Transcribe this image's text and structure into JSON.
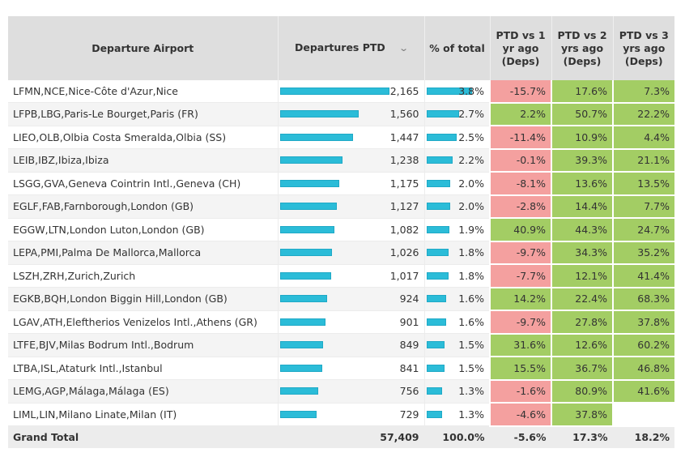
{
  "columns": {
    "airport": "Departure Airport",
    "departures": "Departures PTD",
    "departures_sort_icon": "chevron-down-icon",
    "pct_total": "% of total",
    "vs1": "PTD vs 1 yr ago (Deps)",
    "vs2": "PTD vs 2 yrs ago (Deps)",
    "vs3": "PTD vs 3 yrs ago (Deps)"
  },
  "colors": {
    "bar": "#2bbcd8",
    "negative": "#f4a09f",
    "positive": "#a3cd64",
    "header_bg": "#dedede"
  },
  "max_departures": 2165,
  "max_pct": 3.8,
  "rows": [
    {
      "airport": "LFMN,NCE,Nice-Côte d'Azur,Nice",
      "departures": "2,165",
      "dep_value": 2165,
      "pct": "3.8%",
      "pct_value": 3.8,
      "vs1": "-15.7%",
      "vs2": "17.6%",
      "vs3": "7.3%"
    },
    {
      "airport": "LFPB,LBG,Paris-Le Bourget,Paris (FR)",
      "departures": "1,560",
      "dep_value": 1560,
      "pct": "2.7%",
      "pct_value": 2.7,
      "vs1": "2.2%",
      "vs2": "50.7%",
      "vs3": "22.2%"
    },
    {
      "airport": "LIEO,OLB,Olbia Costa Smeralda,Olbia (SS)",
      "departures": "1,447",
      "dep_value": 1447,
      "pct": "2.5%",
      "pct_value": 2.5,
      "vs1": "-11.4%",
      "vs2": "10.9%",
      "vs3": "4.4%"
    },
    {
      "airport": "LEIB,IBZ,Ibiza,Ibiza",
      "departures": "1,238",
      "dep_value": 1238,
      "pct": "2.2%",
      "pct_value": 2.2,
      "vs1": "-0.1%",
      "vs2": "39.3%",
      "vs3": "21.1%"
    },
    {
      "airport": "LSGG,GVA,Geneva Cointrin Intl.,Geneva (CH)",
      "departures": "1,175",
      "dep_value": 1175,
      "pct": "2.0%",
      "pct_value": 2.0,
      "vs1": "-8.1%",
      "vs2": "13.6%",
      "vs3": "13.5%"
    },
    {
      "airport": "EGLF,FAB,Farnborough,London (GB)",
      "departures": "1,127",
      "dep_value": 1127,
      "pct": "2.0%",
      "pct_value": 2.0,
      "vs1": "-2.8%",
      "vs2": "14.4%",
      "vs3": "7.7%"
    },
    {
      "airport": "EGGW,LTN,London Luton,London (GB)",
      "departures": "1,082",
      "dep_value": 1082,
      "pct": "1.9%",
      "pct_value": 1.9,
      "vs1": "40.9%",
      "vs2": "44.3%",
      "vs3": "24.7%"
    },
    {
      "airport": "LEPA,PMI,Palma De Mallorca,Mallorca",
      "departures": "1,026",
      "dep_value": 1026,
      "pct": "1.8%",
      "pct_value": 1.8,
      "vs1": "-9.7%",
      "vs2": "34.3%",
      "vs3": "35.2%"
    },
    {
      "airport": "LSZH,ZRH,Zurich,Zurich",
      "departures": "1,017",
      "dep_value": 1017,
      "pct": "1.8%",
      "pct_value": 1.8,
      "vs1": "-7.7%",
      "vs2": "12.1%",
      "vs3": "41.4%"
    },
    {
      "airport": "EGKB,BQH,London Biggin Hill,London (GB)",
      "departures": "924",
      "dep_value": 924,
      "pct": "1.6%",
      "pct_value": 1.6,
      "vs1": "14.2%",
      "vs2": "22.4%",
      "vs3": "68.3%"
    },
    {
      "airport": "LGAV,ATH,Eleftherios Venizelos Intl.,Athens (GR)",
      "departures": "901",
      "dep_value": 901,
      "pct": "1.6%",
      "pct_value": 1.6,
      "vs1": "-9.7%",
      "vs2": "27.8%",
      "vs3": "37.8%"
    },
    {
      "airport": "LTFE,BJV,Milas Bodrum Intl.,Bodrum",
      "departures": "849",
      "dep_value": 849,
      "pct": "1.5%",
      "pct_value": 1.5,
      "vs1": "31.6%",
      "vs2": "12.6%",
      "vs3": "60.2%"
    },
    {
      "airport": "LTBA,ISL,Ataturk Intl.,Istanbul",
      "departures": "841",
      "dep_value": 841,
      "pct": "1.5%",
      "pct_value": 1.5,
      "vs1": "15.5%",
      "vs2": "36.7%",
      "vs3": "46.8%"
    },
    {
      "airport": "LEMG,AGP,Málaga,Málaga (ES)",
      "departures": "756",
      "dep_value": 756,
      "pct": "1.3%",
      "pct_value": 1.3,
      "vs1": "-1.6%",
      "vs2": "80.9%",
      "vs3": "41.6%"
    },
    {
      "airport": "LIML,LIN,Milano Linate,Milan (IT)",
      "departures": "729",
      "dep_value": 729,
      "pct": "1.3%",
      "pct_value": 1.3,
      "vs1": "-4.6%",
      "vs2": "37.8%",
      "vs3": ""
    }
  ],
  "total": {
    "label": "Grand Total",
    "departures": "57,409",
    "pct": "100.0%",
    "vs1": "-5.6%",
    "vs2": "17.3%",
    "vs3": "18.2%"
  }
}
